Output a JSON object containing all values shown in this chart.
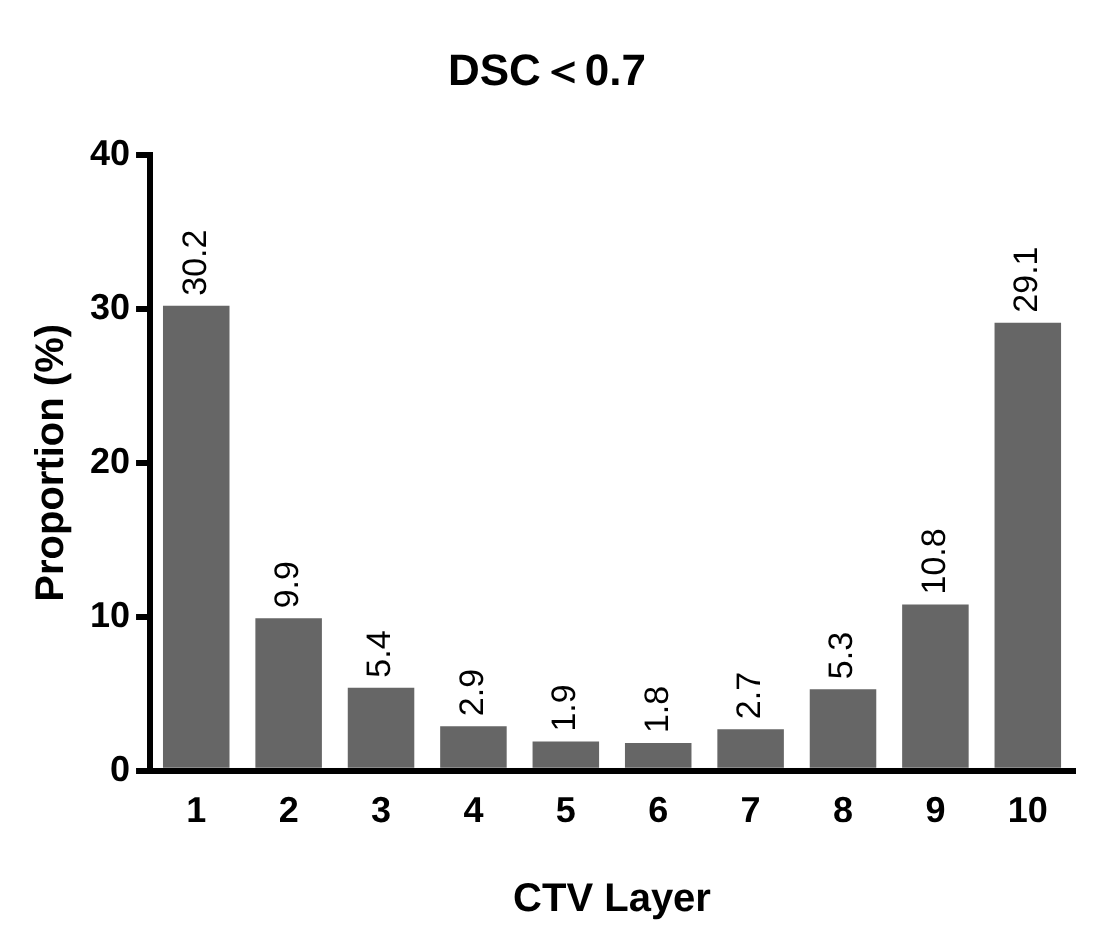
{
  "chart_data": {
    "type": "bar",
    "title": "DSC＜0.7",
    "xlabel": "CTV Layer",
    "ylabel": "Proportion (%)",
    "categories": [
      "1",
      "2",
      "3",
      "4",
      "5",
      "6",
      "7",
      "8",
      "9",
      "10"
    ],
    "values": [
      30.2,
      9.9,
      5.4,
      2.9,
      1.9,
      1.8,
      2.7,
      5.3,
      10.8,
      29.1
    ],
    "color": "#666666",
    "ylim": [
      0,
      40
    ],
    "yticks": [
      0,
      10,
      20,
      30,
      40
    ],
    "grid": false,
    "legend": false,
    "data_labels": true
  }
}
